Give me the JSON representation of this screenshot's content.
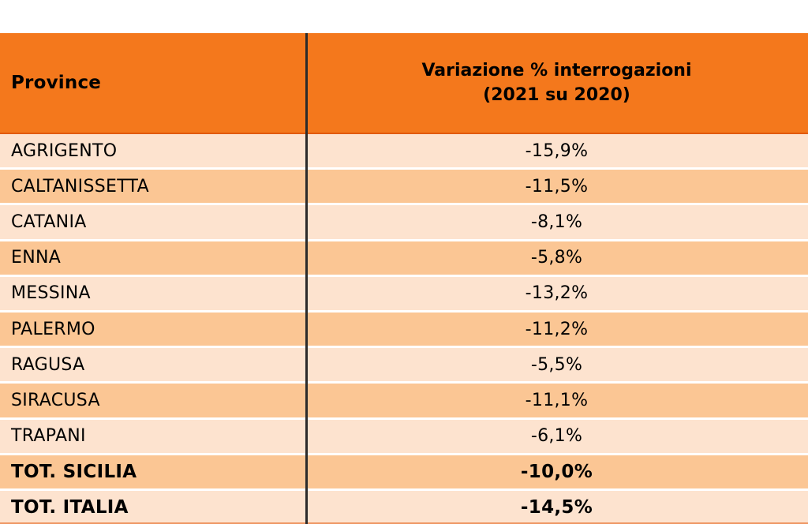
{
  "table": {
    "header": {
      "col1": "Province",
      "col2_line1": "Variazione % interrogazioni",
      "col2_line2": "(2021 su 2020)"
    },
    "rows": [
      {
        "province": "AGRIGENTO",
        "value": "-15,9%",
        "bold": false
      },
      {
        "province": "CALTANISSETTA",
        "value": "-11,5%",
        "bold": false
      },
      {
        "province": "CATANIA",
        "value": "-8,1%",
        "bold": false
      },
      {
        "province": "ENNA",
        "value": "-5,8%",
        "bold": false
      },
      {
        "province": "MESSINA",
        "value": "-13,2%",
        "bold": false
      },
      {
        "province": "PALERMO",
        "value": "-11,2%",
        "bold": false
      },
      {
        "province": "RAGUSA",
        "value": "-5,5%",
        "bold": false
      },
      {
        "province": "SIRACUSA",
        "value": "-11,1%",
        "bold": false
      },
      {
        "province": "TRAPANI",
        "value": "-6,1%",
        "bold": false
      },
      {
        "province": "TOT. SICILIA",
        "value": "-10,0%",
        "bold": true
      },
      {
        "province": "TOT. ITALIA",
        "value": "-14,5%",
        "bold": true
      }
    ]
  },
  "colors": {
    "header_bg": "#F4781C",
    "row_light": "#FDE3CF",
    "row_dark": "#FBC694",
    "divider": "#2B2B2B",
    "accent_line": "#E25A0D",
    "text": "#000000"
  },
  "chart_data": {
    "type": "table",
    "title": "Variazione % interrogazioni (2021 su 2020) per provincia",
    "columns": [
      "Province",
      "Variazione % interrogazioni (2021 su 2020)"
    ],
    "rows": [
      [
        "AGRIGENTO",
        "-15,9%"
      ],
      [
        "CALTANISSETTA",
        "-11,5%"
      ],
      [
        "CATANIA",
        "-8,1%"
      ],
      [
        "ENNA",
        "-5,8%"
      ],
      [
        "MESSINA",
        "-13,2%"
      ],
      [
        "PALERMO",
        "-11,2%"
      ],
      [
        "RAGUSA",
        "-5,5%"
      ],
      [
        "SIRACUSA",
        "-11,1%"
      ],
      [
        "TRAPANI",
        "-6,1%"
      ],
      [
        "TOT. SICILIA",
        "-10,0%"
      ],
      [
        "TOT. ITALIA",
        "-14,5%"
      ]
    ],
    "values_numeric": [
      -15.9,
      -11.5,
      -8.1,
      -5.8,
      -13.2,
      -11.2,
      -5.5,
      -11.1,
      -6.1,
      -10.0,
      -14.5
    ],
    "bold_rows": [
      "TOT. SICILIA",
      "TOT. ITALIA"
    ],
    "layout_hints": {
      "header_fill": "#F4781C",
      "alternating_row_fills": [
        "#FDE3CF",
        "#FBC694"
      ],
      "column_divider": "black vertical line",
      "values_alignment": "center",
      "negative_values": true
    }
  }
}
